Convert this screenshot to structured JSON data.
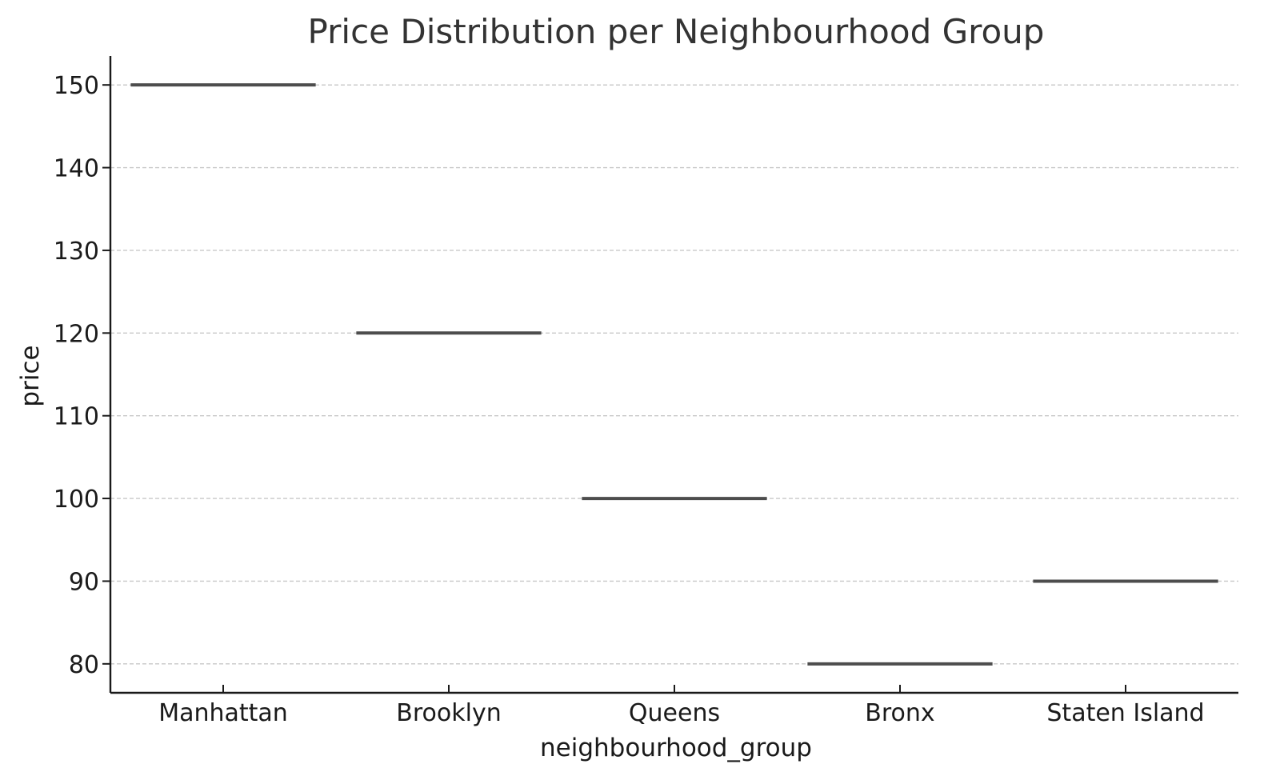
{
  "chart_data": {
    "type": "box",
    "title": "Price Distribution per Neighbourhood Group",
    "xlabel": "neighbourhood_group",
    "ylabel": "price",
    "categories": [
      "Manhattan",
      "Brooklyn",
      "Queens",
      "Bronx",
      "Staten Island"
    ],
    "values": [
      150,
      120,
      100,
      80,
      90
    ],
    "yticks": [
      80,
      90,
      100,
      110,
      120,
      130,
      140,
      150
    ],
    "ylim": [
      76.5,
      153.5
    ],
    "grid": true,
    "grid_axis": "y",
    "line_color": "#4d4d4d"
  }
}
